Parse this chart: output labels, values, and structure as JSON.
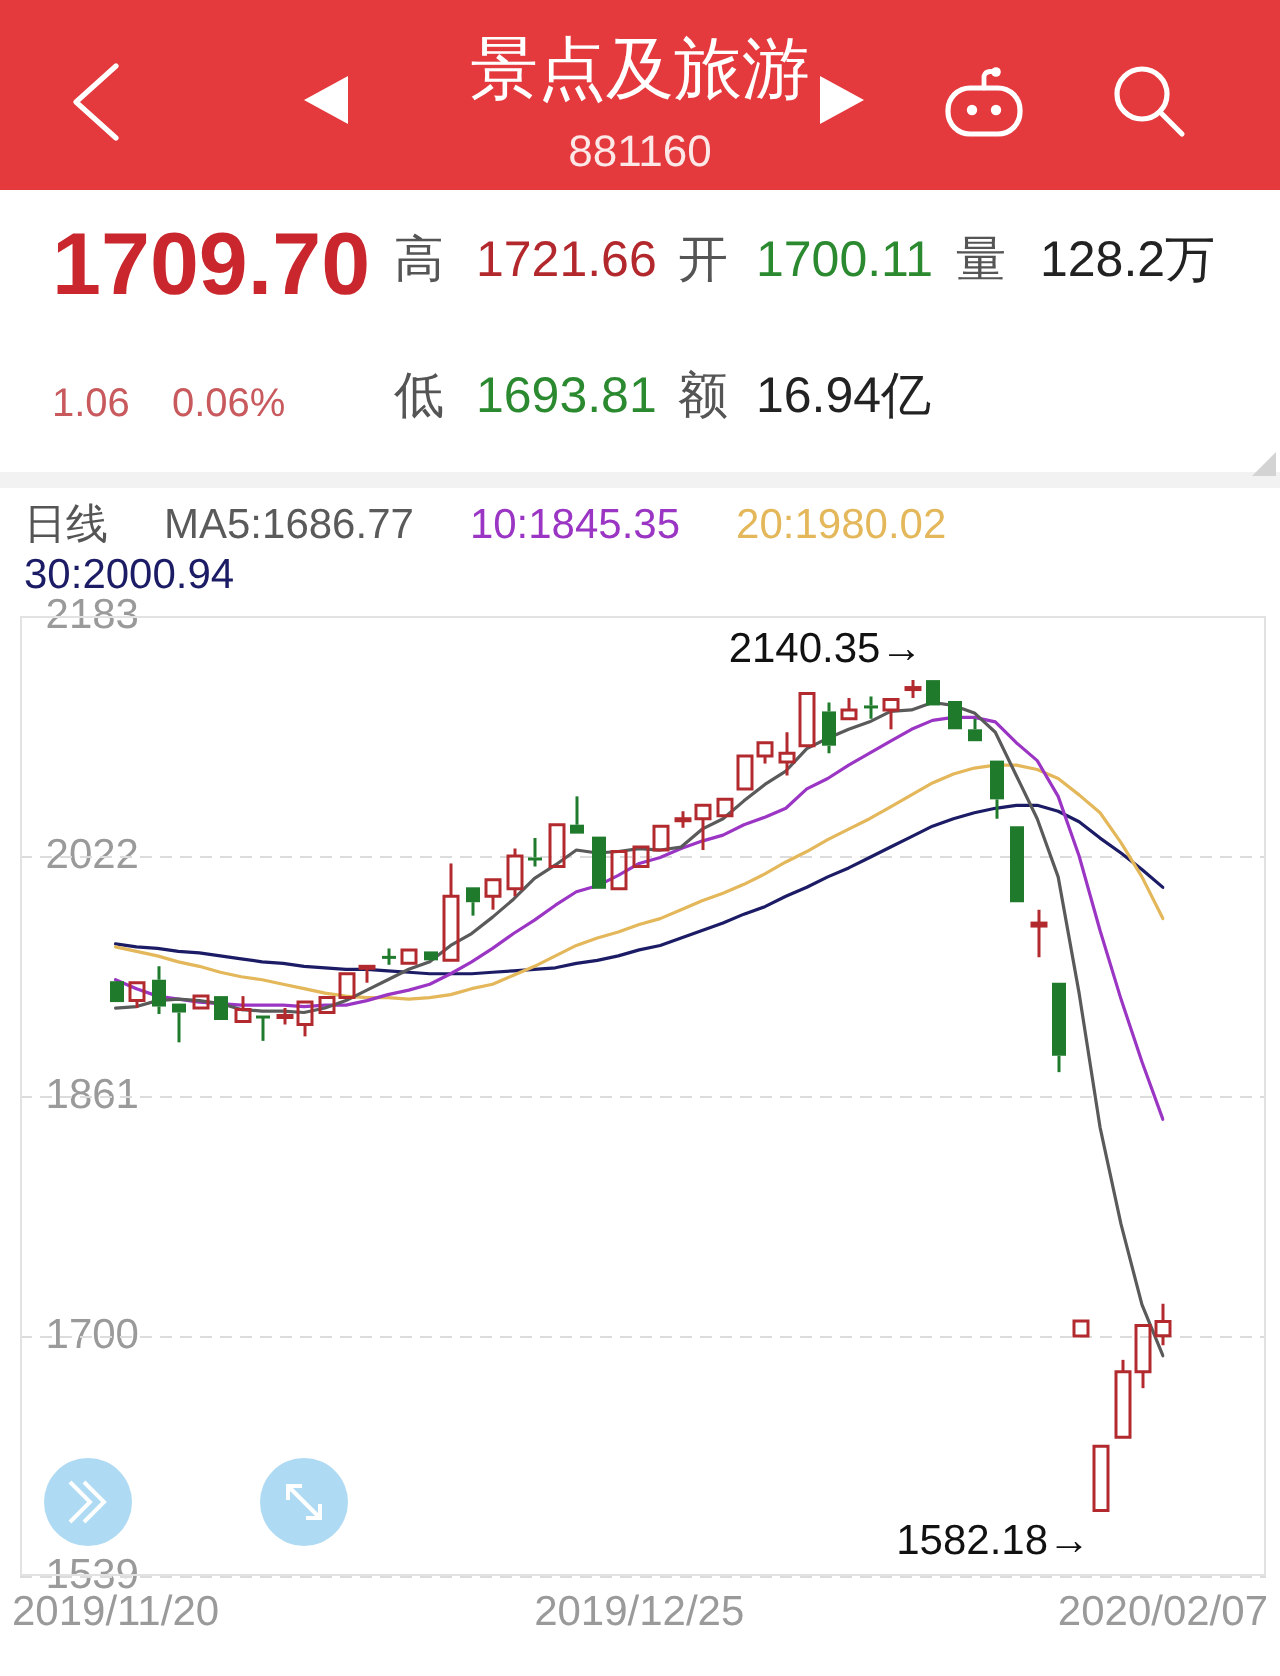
{
  "chart_data": {
    "type": "candlestick",
    "title": "景点及旅游",
    "subtitle": "881160",
    "legend_title": "日线",
    "categories": [
      "2019/11/20",
      null,
      null,
      null,
      null,
      null,
      null,
      null,
      null,
      null,
      null,
      null,
      null,
      null,
      null,
      null,
      null,
      null,
      null,
      null,
      null,
      null,
      null,
      null,
      null,
      "2019/12/25",
      null,
      null,
      null,
      null,
      null,
      null,
      null,
      null,
      null,
      null,
      null,
      null,
      null,
      null,
      null,
      null,
      null,
      null,
      null,
      null,
      null,
      null,
      null,
      null,
      "2020/02/07"
    ],
    "ohlc": [
      [
        1938,
        1939,
        1922,
        1924
      ],
      [
        1925,
        1938,
        1920,
        1937
      ],
      [
        1939,
        1948,
        1916,
        1921
      ],
      [
        1923,
        1924,
        1897,
        1917
      ],
      [
        1920,
        1930,
        1918,
        1928
      ],
      [
        1928,
        1929,
        1910,
        1912
      ],
      [
        1911,
        1928,
        1910,
        1919
      ],
      [
        1915,
        1915,
        1898,
        1914
      ],
      [
        1914,
        1920,
        1909,
        1915
      ],
      [
        1909,
        1926,
        1901,
        1924
      ],
      [
        1917,
        1929,
        1915,
        1927
      ],
      [
        1927,
        1944,
        1926,
        1943
      ],
      [
        1947,
        1950,
        1937,
        1948
      ],
      [
        1955,
        1960,
        1949,
        1954
      ],
      [
        1950,
        1960,
        1949,
        1959
      ],
      [
        1958,
        1960,
        1950,
        1952
      ],
      [
        1952,
        2017,
        1951,
        1995
      ],
      [
        2001,
        2002,
        1982,
        1991
      ],
      [
        1995,
        2007,
        1986,
        2006
      ],
      [
        2000,
        2027,
        1995,
        2022
      ],
      [
        2021,
        2034,
        2015,
        2020
      ],
      [
        2015,
        2044,
        2014,
        2043
      ],
      [
        2043,
        2062,
        2036,
        2037
      ],
      [
        2035,
        2037,
        1999,
        2000
      ],
      [
        2000,
        2026,
        1999,
        2025
      ],
      [
        2015,
        2029,
        2014,
        2028
      ],
      [
        2026,
        2043,
        2025,
        2042
      ],
      [
        2046,
        2052,
        2041,
        2047
      ],
      [
        2047,
        2057,
        2026,
        2056
      ],
      [
        2049,
        2061,
        2048,
        2060
      ],
      [
        2067,
        2090,
        2066,
        2089
      ],
      [
        2089,
        2099,
        2084,
        2098
      ],
      [
        2085,
        2105,
        2076,
        2091
      ],
      [
        2096,
        2132,
        2095,
        2131
      ],
      [
        2119,
        2125,
        2091,
        2096
      ],
      [
        2114,
        2128,
        2113,
        2120
      ],
      [
        2123,
        2129,
        2114,
        2122
      ],
      [
        2120,
        2128,
        2107,
        2127
      ],
      [
        2134,
        2140,
        2128,
        2135
      ],
      [
        2140,
        2140.35,
        2122,
        2123
      ],
      [
        2126,
        2127,
        2105,
        2107
      ],
      [
        2107,
        2114,
        2098,
        2099
      ],
      [
        2086,
        2087,
        2047,
        2060
      ],
      [
        2042,
        2043,
        1990,
        1991
      ],
      [
        1975,
        1986,
        1954,
        1977
      ],
      [
        1937,
        1938,
        1877,
        1888
      ],
      [
        1700,
        1711,
        1699,
        1710
      ],
      [
        1583,
        1627,
        1582.18,
        1626
      ],
      [
        1632,
        1684,
        1631,
        1676
      ],
      [
        1676,
        1708,
        1665,
        1707
      ],
      [
        1700.11,
        1721.66,
        1693.81,
        1709.7
      ]
    ],
    "colors": [
      "#1f7a2c",
      "#b22a2e",
      "#1f7a2c",
      "#1f7a2c",
      "#b22a2e",
      "#1f7a2c",
      "#b22a2e",
      "#1f7a2c",
      "#b22a2e",
      "#b22a2e",
      "#b22a2e",
      "#b22a2e",
      "#b22a2e",
      "#1f7a2c",
      "#b22a2e",
      "#1f7a2c",
      "#b22a2e",
      "#1f7a2c",
      "#b22a2e",
      "#b22a2e",
      "#1f7a2c",
      "#b22a2e",
      "#1f7a2c",
      "#1f7a2c",
      "#b22a2e",
      "#b22a2e",
      "#b22a2e",
      "#b22a2e",
      "#b22a2e",
      "#b22a2e",
      "#b22a2e",
      "#b22a2e",
      "#b22a2e",
      "#b22a2e",
      "#1f7a2c",
      "#b22a2e",
      "#1f7a2c",
      "#b22a2e",
      "#b22a2e",
      "#1f7a2c",
      "#1f7a2c",
      "#1f7a2c",
      "#1f7a2c",
      "#1f7a2c",
      "#b22a2e",
      "#1f7a2c",
      "#b22a2e",
      "#b22a2e",
      "#b22a2e",
      "#b22a2e",
      "#b22a2e"
    ],
    "series": [
      {
        "name": "MA5:1686.77",
        "type": "line",
        "color": "#5a5a5a",
        "values": [
          1920,
          1921,
          1925,
          1926,
          1925,
          1923,
          1919,
          1918,
          1918,
          1917,
          1920,
          1925,
          1932,
          1939,
          1946,
          1951,
          1962,
          1970,
          1981,
          1993,
          2007,
          2016,
          2026,
          2024,
          2025,
          2027,
          2026,
          2028,
          2040,
          2047,
          2059,
          2070,
          2079,
          2094,
          2101,
          2107,
          2112,
          2119,
          2120,
          2125,
          2123,
          2118,
          2105,
          2076,
          2047,
          2008,
          1930,
          1840,
          1775,
          1721,
          1686.77
        ]
      },
      {
        "name": "10:1845.35",
        "type": "line",
        "color": "#9b35c4",
        "values": [
          1939,
          1933,
          1928,
          1926,
          1924,
          1923,
          1922,
          1922,
          1922,
          1921,
          1922,
          1922,
          1925,
          1929,
          1932,
          1936,
          1943,
          1951,
          1960,
          1970,
          1979,
          1989,
          1998,
          2002,
          2009,
          2017,
          2021,
          2027,
          2032,
          2036,
          2043,
          2048,
          2054,
          2067,
          2074,
          2083,
          2091,
          2099,
          2107,
          2113,
          2115,
          2115,
          2112,
          2098,
          2086,
          2062,
          2022,
          1972,
          1926,
          1884,
          1845.35
        ]
      },
      {
        "name": "20:1980.02",
        "type": "line",
        "color": "#e3b75a",
        "values": [
          1961,
          1958,
          1955,
          1951,
          1948,
          1944,
          1941,
          1939,
          1936,
          1933,
          1930,
          1928,
          1927,
          1927,
          1926,
          1927,
          1929,
          1933,
          1936,
          1942,
          1948,
          1955,
          1962,
          1967,
          1971,
          1976,
          1980,
          1986,
          1992,
          1997,
          2003,
          2010,
          2018,
          2025,
          2033,
          2040,
          2047,
          2055,
          2063,
          2071,
          2077,
          2081,
          2083,
          2083,
          2080,
          2074,
          2063,
          2051,
          2031,
          2008,
          1980.02
        ]
      },
      {
        "name": "30:2000.94",
        "type": "line",
        "color": "#1c1c66",
        "values": [
          1963,
          1961,
          1960,
          1958,
          1957,
          1955,
          1953,
          1951,
          1950,
          1948,
          1947,
          1946,
          1946,
          1945,
          1944,
          1943,
          1943,
          1943,
          1944,
          1945,
          1946,
          1947,
          1950,
          1952,
          1955,
          1959,
          1962,
          1967,
          1972,
          1977,
          1983,
          1988,
          1995,
          2001,
          2008,
          2014,
          2021,
          2028,
          2035,
          2042,
          2047,
          2051,
          2054,
          2056,
          2056,
          2052,
          2045,
          2034,
          2024,
          2013,
          2000.94
        ]
      }
    ],
    "ylim": [
      1539,
      2183
    ],
    "yticks": [
      1539,
      1700,
      1861,
      2022,
      2183
    ],
    "grid": "y",
    "legend": "top left",
    "annotations": [
      "1709.70",
      "高",
      "1721.66",
      "开",
      "1700.11",
      "量",
      "128.2万",
      "1.06",
      "0.06%",
      "低",
      "1693.81",
      "额",
      "16.94亿",
      "2140.35→",
      "1582.18→"
    ]
  }
}
